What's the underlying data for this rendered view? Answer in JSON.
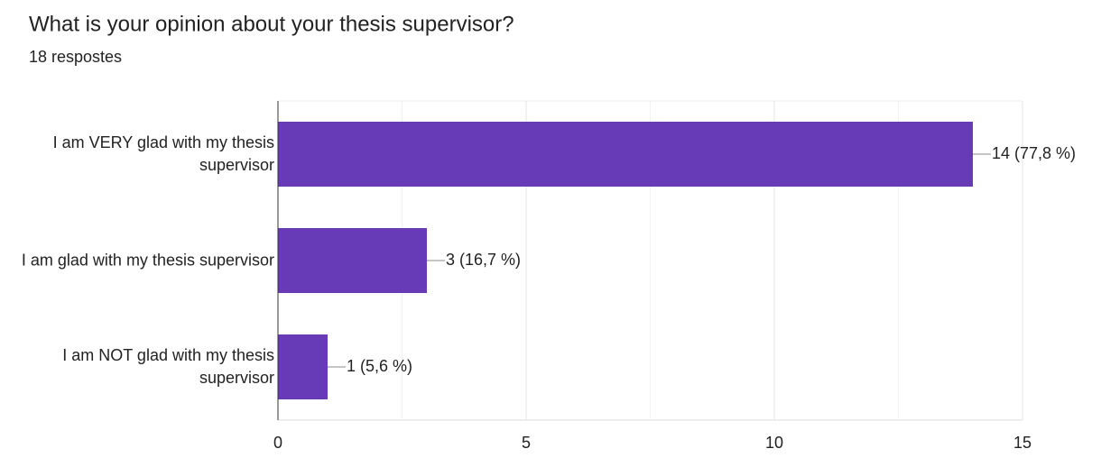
{
  "chart_data": {
    "type": "bar",
    "orientation": "horizontal",
    "title": "What is your opinion about your thesis supervisor?",
    "subtitle": "18 respostes",
    "categories": [
      "I am VERY glad with my thesis supervisor",
      "I am glad with my thesis supervisor",
      "I am NOT glad with my thesis supervisor"
    ],
    "values": [
      14,
      3,
      1
    ],
    "value_labels": [
      "14 (77,8 %)",
      "3 (16,7 %)",
      "1 (5,6 %)"
    ],
    "color": "#673ab7",
    "xlim": [
      0,
      15
    ],
    "xticks": [
      0,
      5,
      10,
      15
    ],
    "minor_xticks": [
      2.5,
      7.5,
      12.5
    ],
    "grid": true
  }
}
